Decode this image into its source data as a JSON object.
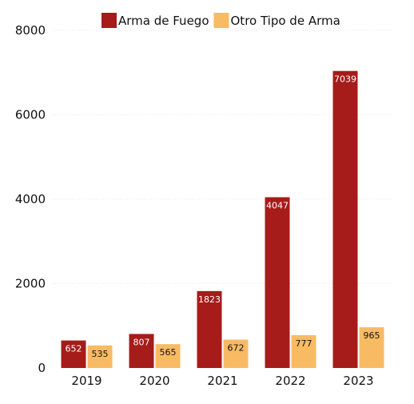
{
  "chart_data": {
    "type": "bar",
    "title": "",
    "xlabel": "",
    "ylabel": "",
    "categories": [
      "2019",
      "2020",
      "2021",
      "2022",
      "2023"
    ],
    "series": [
      {
        "name": "Arma de Fuego",
        "color": "#a51c1a",
        "label_color": "#ffffff",
        "values": [
          652,
          807,
          1823,
          4047,
          7039
        ]
      },
      {
        "name": "Otro Tipo de Arma",
        "color": "#f8bb63",
        "label_color": "#111111",
        "values": [
          535,
          565,
          672,
          777,
          965
        ]
      }
    ],
    "ylim": [
      0,
      8000
    ],
    "yticks": [
      0,
      2000,
      4000,
      6000,
      8000
    ],
    "grid": true,
    "legend_position": "top"
  }
}
